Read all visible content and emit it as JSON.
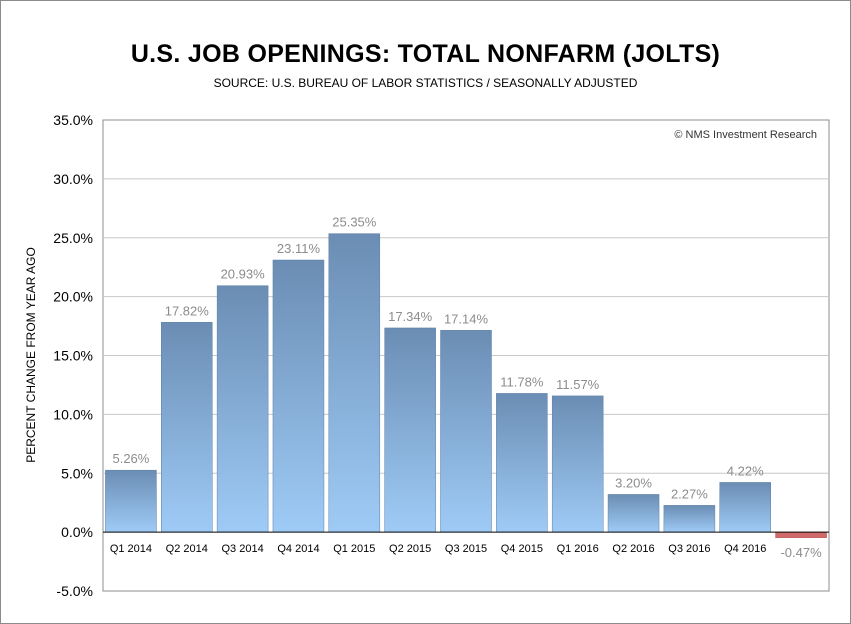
{
  "chart_data": {
    "type": "bar",
    "title": "U.S. JOB OPENINGS: TOTAL NONFARM (JOLTS)",
    "subtitle": "SOURCE: U.S. BUREAU OF LABOR STATISTICS / SEASONALLY ADJUSTED",
    "ylabel": "PERCENT CHANGE FROM YEAR AGO",
    "xlabel": "",
    "watermark": "© NMS Investment Research",
    "categories": [
      "Q1 2014",
      "Q2 2014",
      "Q3 2014",
      "Q4 2014",
      "Q1 2015",
      "Q2 2015",
      "Q3 2015",
      "Q4 2015",
      "Q1 2016",
      "Q2 2016",
      "Q3 2016",
      "Q4 2016",
      ""
    ],
    "values": [
      5.26,
      17.82,
      20.93,
      23.11,
      25.35,
      17.34,
      17.14,
      11.78,
      11.57,
      3.2,
      2.27,
      4.22,
      -0.47
    ],
    "data_labels": [
      "5.26%",
      "17.82%",
      "20.93%",
      "23.11%",
      "25.35%",
      "17.34%",
      "17.14%",
      "11.78%",
      "11.57%",
      "3.20%",
      "2.27%",
      "4.22%",
      "-0.47%"
    ],
    "ylim": [
      -5,
      35
    ],
    "yticks": [
      -5,
      0,
      5,
      10,
      15,
      20,
      25,
      30,
      35
    ],
    "ytick_labels": [
      "-5.0%",
      "0.0%",
      "5.0%",
      "10.0%",
      "15.0%",
      "20.0%",
      "25.0%",
      "30.0%",
      "35.0%"
    ],
    "grid": true,
    "colors": {
      "positive_top": "#6b8db4",
      "positive_bottom": "#9ecbf6",
      "negative": "#d06a6a",
      "grid": "#c8c8c8",
      "data_label": "#8c8c8c"
    }
  }
}
